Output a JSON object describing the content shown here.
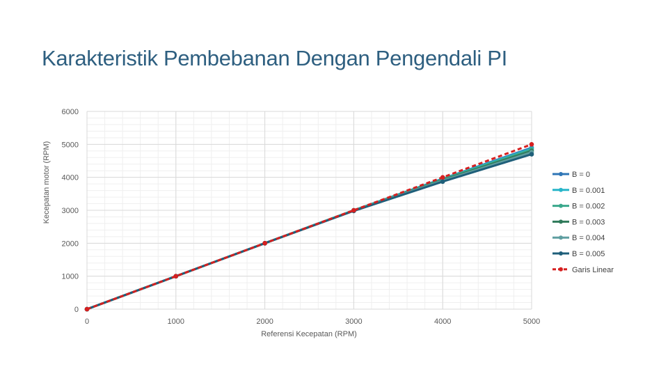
{
  "slide": {
    "title": "Karakteristik Pembebanan Dengan Pengendali PI"
  },
  "chart_data": {
    "type": "line",
    "xlabel": "Referensi Kecepatan (RPM)",
    "ylabel": "Kecepatan motor (RPM)",
    "xlim": [
      0,
      5000
    ],
    "ylim": [
      0,
      6000
    ],
    "xticks": [
      0,
      1000,
      2000,
      3000,
      4000,
      5000
    ],
    "yticks": [
      0,
      1000,
      2000,
      3000,
      4000,
      5000,
      6000
    ],
    "grid": true,
    "legend_position": "right",
    "x": [
      0,
      1000,
      2000,
      3000,
      4000,
      5000
    ],
    "series": [
      {
        "name": "B = 0",
        "color": "#2e75b6",
        "values": [
          0,
          1000,
          2000,
          3000,
          3960,
          4900
        ],
        "dash": false
      },
      {
        "name": "B = 0.001",
        "color": "#27b5c9",
        "values": [
          0,
          1000,
          2000,
          3000,
          3950,
          4870
        ],
        "dash": false
      },
      {
        "name": "B = 0.002",
        "color": "#3aa88c",
        "values": [
          0,
          1000,
          2000,
          3000,
          3940,
          4840
        ],
        "dash": false
      },
      {
        "name": "B = 0.003",
        "color": "#2f7a5a",
        "values": [
          0,
          1000,
          2000,
          2990,
          3920,
          4800
        ],
        "dash": false
      },
      {
        "name": "B = 0.004",
        "color": "#5f9ea0",
        "values": [
          0,
          1000,
          2000,
          2990,
          3900,
          4760
        ],
        "dash": false
      },
      {
        "name": "B = 0.005",
        "color": "#1f5f7a",
        "values": [
          0,
          1000,
          2000,
          2980,
          3870,
          4700
        ],
        "dash": false
      },
      {
        "name": "Garis Linear",
        "color": "#d62020",
        "values": [
          0,
          1000,
          2000,
          3000,
          4000,
          5000
        ],
        "dash": true
      }
    ]
  }
}
